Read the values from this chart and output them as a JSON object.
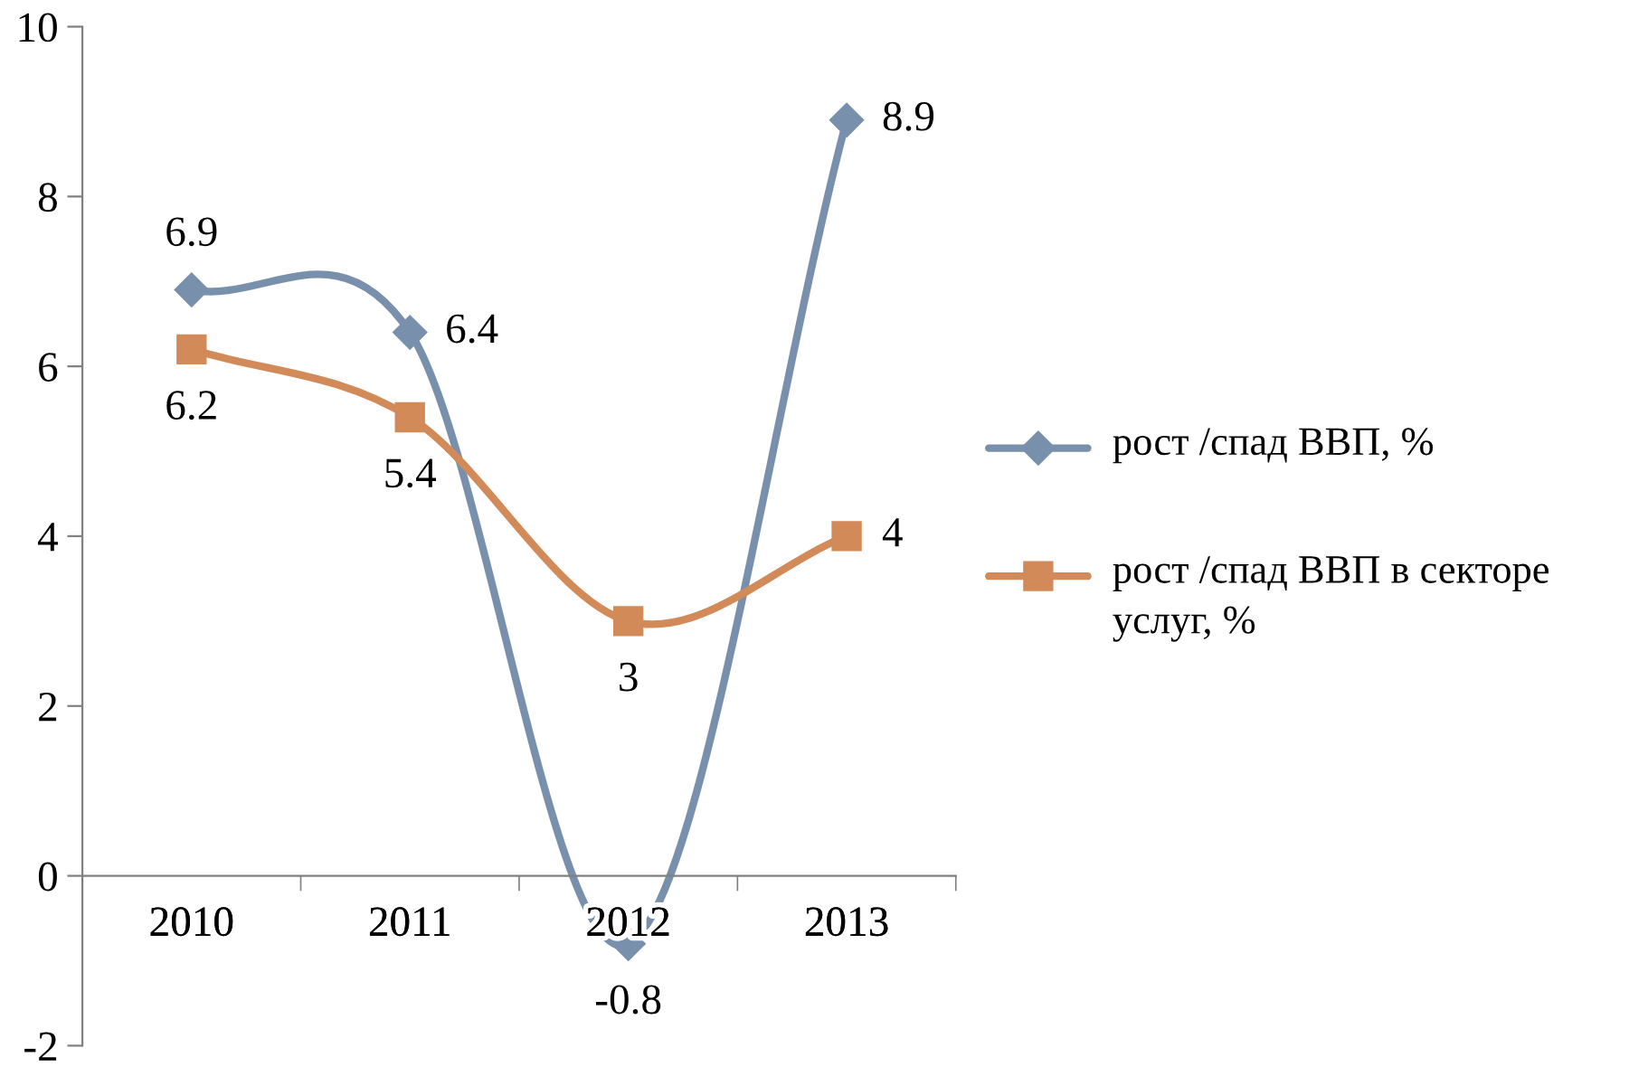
{
  "chart_data": {
    "type": "line",
    "categories": [
      "2010",
      "2011",
      "2012",
      "2013"
    ],
    "series": [
      {
        "name": "рост /спад ВВП, %",
        "color": "#7990ad",
        "marker": "diamond",
        "values": [
          6.9,
          6.4,
          -0.8,
          8.9
        ]
      },
      {
        "name": "рост /спад ВВП в секторе услуг, %",
        "color": "#d18a58",
        "marker": "square",
        "values": [
          6.2,
          5.4,
          3,
          4
        ]
      }
    ],
    "ylim": [
      -2,
      10
    ],
    "yticks": [
      -2,
      0,
      2,
      4,
      6,
      8,
      10
    ],
    "data_labels": true,
    "grid": false,
    "legend": "right",
    "line_style": "solid"
  }
}
